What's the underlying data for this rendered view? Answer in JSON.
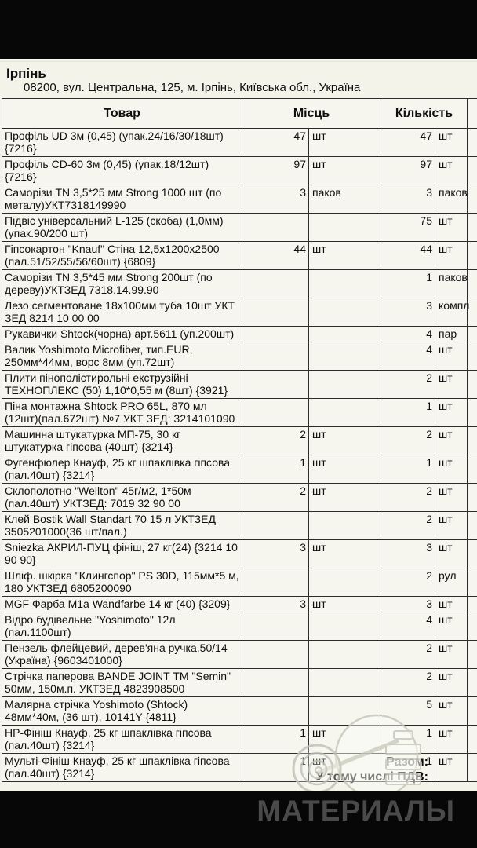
{
  "header": {
    "city": "Ірпінь",
    "address": "08200, вул. Центральна, 125, м. Ірпінь, Київська обл., Україна"
  },
  "table": {
    "columns": {
      "product": "Товар",
      "places": "Місць",
      "quantity": "Кількість"
    },
    "rows": [
      {
        "name": "Профіль UD 3м  (0,45)      (упак.24/16/30/18шт) {7216}",
        "places": "47",
        "places_unit": "шт",
        "qty": "47",
        "qty_unit": "шт"
      },
      {
        "name": "Профіль CD-60  3м  (0,45)      (упак.18/12шт) {7216}",
        "places": "97",
        "places_unit": "шт",
        "qty": "97",
        "qty_unit": "шт"
      },
      {
        "name": "Саморізи TN 3,5*25 мм Strong 1000 шт (по металу)УКТ7318149990",
        "places": "3",
        "places_unit": "паков",
        "qty": "3",
        "qty_unit": "паков"
      },
      {
        "name": "Підвіс універсальний L-125 (скоба) (1,0мм) (упак.90/200 шт)",
        "places": "",
        "places_unit": "",
        "qty": "75",
        "qty_unit": "шт"
      },
      {
        "name": "Гіпсокартон \"Knauf\" Стіна 12,5х1200х2500 (пал.51/52/55/56/60шт) {6809}",
        "places": "44",
        "places_unit": "шт",
        "qty": "44",
        "qty_unit": "шт"
      },
      {
        "name": "Саморізи TN 3,5*45 мм Strong 200шт (по дереву)УКТЗЕД 7318.14.99.90",
        "places": "",
        "places_unit": "",
        "qty": "1",
        "qty_unit": "паков"
      },
      {
        "name": "Лезо сегментоване 18х100мм туба 10шт  УКТ ЗЕД 8214 10 00 00",
        "places": "",
        "places_unit": "",
        "qty": "3",
        "qty_unit": "компл"
      },
      {
        "name": "Рукавички Shtock(чорна) арт.5611 (уп.200шт)",
        "places": "",
        "places_unit": "",
        "qty": "4",
        "qty_unit": "пар"
      },
      {
        "name": "Валик Yoshimoto Microfiber, тип.EUR, 250мм*44мм, ворс 8мм (уп.72шт)",
        "places": "",
        "places_unit": "",
        "qty": "4",
        "qty_unit": "шт"
      },
      {
        "name": "Плити пінополістирольні екструзійні ТЕХНОПЛЕКС  (50) 1,10*0,55 м (8шт)  {3921}",
        "places": "",
        "places_unit": "",
        "qty": "2",
        "qty_unit": "шт"
      },
      {
        "name": "Піна монтажна Shtock PRO 65L, 870 мл (12шт)(пал.672шт) №7 УКТ ЗЕД: 3214101090",
        "places": "",
        "places_unit": "",
        "qty": "1",
        "qty_unit": "шт"
      },
      {
        "name": "Машинна штукатурка МП-75, 30 кг штукатурка гіпсова (40шт) {3214}",
        "places": "2",
        "places_unit": "шт",
        "qty": "2",
        "qty_unit": "шт"
      },
      {
        "name": "Фугенфюлер Кнауф, 25 кг шпаклівка гіпсова (пал.40шт) {3214}",
        "places": "1",
        "places_unit": "шт",
        "qty": "1",
        "qty_unit": "шт"
      },
      {
        "name": "Склополотно \"Wellton\" 45г/м2, 1*50м (пал.40шт) УКТЗЕД: 7019 32 90 00",
        "places": "2",
        "places_unit": "шт",
        "qty": "2",
        "qty_unit": "шт"
      },
      {
        "name": "Клей Bostik Wall Standart 70 15 л УКТЗЕД 3505201000(36 шт/пал.)",
        "places": "",
        "places_unit": "",
        "qty": "2",
        "qty_unit": "шт"
      },
      {
        "name": "Sniezka АКРИЛ-ПУЦ фініш, 27 кг(24) {3214 10 90 90}",
        "places": "3",
        "places_unit": "шт",
        "qty": "3",
        "qty_unit": "шт"
      },
      {
        "name": "Шліф. шкірка \"Клингспор\" PS 30D, 115мм*5 м, 180 УКТЗЕД 6805200090",
        "places": "",
        "places_unit": "",
        "qty": "2",
        "qty_unit": "рул"
      },
      {
        "name": "MGF Фарба М1а Wandfarbe  14 кг (40) {3209}",
        "places": "3",
        "places_unit": "шт",
        "qty": "3",
        "qty_unit": "шт"
      },
      {
        "name": "Відро будівельне \"Yoshimoto\" 12л (пал.1100шт)",
        "places": "",
        "places_unit": "",
        "qty": "4",
        "qty_unit": "шт"
      },
      {
        "name": "Пензель флейцевий, дерев'яна ручка,50/14 (Україна) {9603401000}",
        "places": "",
        "places_unit": "",
        "qty": "2",
        "qty_unit": "шт"
      },
      {
        "name": "Стрічка паперова BANDE JOINT ТМ \"Semin\" 50мм, 150м.п. УКТЗЕД 4823908500",
        "places": "",
        "places_unit": "",
        "qty": "2",
        "qty_unit": "шт"
      },
      {
        "name": "Малярна стрічка Yoshimoto (Shtock) 48мм*40м, (36 шт), 10141Y    {4811}",
        "places": "",
        "places_unit": "",
        "qty": "5",
        "qty_unit": "шт"
      },
      {
        "name": "НР-Фініш Кнауф, 25 кг шпаклівка гіпсова (пал.40шт) {3214}",
        "places": "1",
        "places_unit": "шт",
        "qty": "1",
        "qty_unit": "шт"
      },
      {
        "name": "Мульті-Фініш Кнауф, 25 кг шпаклівка гіпсова (пал.40шт) {3214}",
        "places": "1",
        "places_unit": "шт",
        "qty": "1",
        "qty_unit": "шт"
      }
    ]
  },
  "totals": {
    "total_label": "Разом:",
    "vat_label": "У тому числі ПДВ:"
  },
  "watermark": {
    "text": "МАТЕРИАЛЫ",
    "logo": "spiral-rose-logo"
  },
  "colors": {
    "page_background": "#f3f3ea",
    "bar_black": "#070707",
    "table_border": "#2d2d2d",
    "watermark_text": "#4a4a4a",
    "watermark_logo": "#c9c9bc"
  }
}
